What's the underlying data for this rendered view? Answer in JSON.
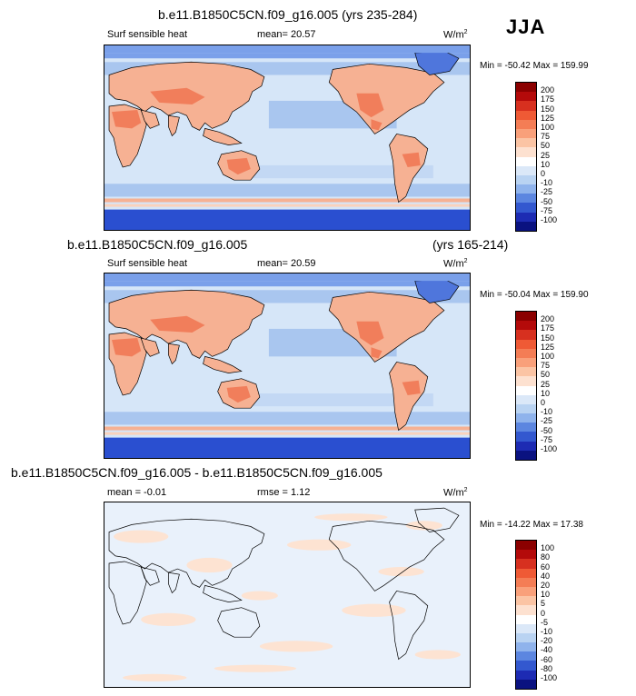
{
  "season": "JJA",
  "panels": [
    {
      "id": "top",
      "title": "b.e11.B1850C5CN.f09_g16.005 (yrs 235-284)",
      "title_right": "",
      "variable": "Surf sensible heat",
      "stat_text": "mean=  20.57",
      "units": "W/m",
      "units_sup": "2",
      "minmax": "Min = -50.42 Max = 159.99",
      "levels": [
        "200",
        "175",
        "150",
        "125",
        "100",
        "75",
        "50",
        "25",
        "10",
        "0",
        "-10",
        "-25",
        "-50",
        "-75",
        "-100"
      ],
      "kind": "field"
    },
    {
      "id": "middle",
      "title": "b.e11.B1850C5CN.f09_g16.005",
      "title_right": "(yrs 165-214)",
      "variable": "Surf sensible heat",
      "stat_text": "mean=  20.59",
      "units": "W/m",
      "units_sup": "2",
      "minmax": "Min = -50.04 Max = 159.90",
      "levels": [
        "200",
        "175",
        "150",
        "125",
        "100",
        "75",
        "50",
        "25",
        "10",
        "0",
        "-10",
        "-25",
        "-50",
        "-75",
        "-100"
      ],
      "kind": "field"
    },
    {
      "id": "bottom",
      "title": "b.e11.B1850C5CN.f09_g16.005 - b.e11.B1850C5CN.f09_g16.005",
      "title_right": "",
      "variable": "mean =  -0.01",
      "stat_text": "rmse =   1.12",
      "units": "W/m",
      "units_sup": "2",
      "minmax": "Min = -14.22 Max = 17.38",
      "levels": [
        "100",
        "80",
        "60",
        "40",
        "20",
        "10",
        "5",
        "0",
        "-5",
        "-10",
        "-20",
        "-40",
        "-60",
        "-80",
        "-100"
      ],
      "kind": "diff"
    }
  ],
  "colors": {
    "scale": [
      "#8b0000",
      "#b40a0a",
      "#d7301f",
      "#ef5a35",
      "#f47d55",
      "#f9a07a",
      "#fbc4a4",
      "#fde1d0",
      "#ffffff",
      "#dbe8f8",
      "#b9d3f2",
      "#8fb3ec",
      "#5c86e0",
      "#3358cf",
      "#1d2bb3",
      "#0a1280"
    ],
    "ocean_field": "#d6e6f8",
    "ocean_band": "#a9c6ef",
    "land_warm": "#f6b193",
    "land_hot": "#ef6e48",
    "antarctic": "#2a4fd0",
    "arctic": "#7aa0ea",
    "diff_base": "#e9f1fb",
    "diff_pos": "#fde3d2",
    "coast": "#000000"
  }
}
